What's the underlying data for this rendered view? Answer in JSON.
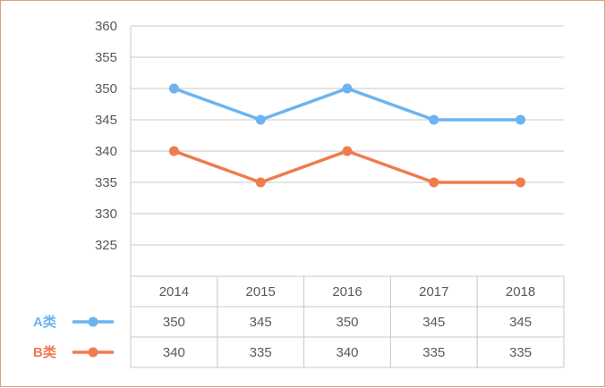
{
  "chart_data": {
    "type": "line",
    "categories": [
      "2014",
      "2015",
      "2016",
      "2017",
      "2018"
    ],
    "ylim": [
      320,
      360
    ],
    "yticks": [
      360,
      355,
      350,
      345,
      340,
      335,
      330,
      325
    ],
    "grid": true,
    "legend_placement": "left-of-table",
    "series": [
      {
        "name": "A类",
        "color": "#6cb4ef",
        "values": [
          350,
          345,
          350,
          345,
          345
        ]
      },
      {
        "name": "B类",
        "color": "#ef7c4f",
        "values": [
          340,
          335,
          340,
          335,
          335
        ]
      }
    ],
    "data_table": true
  }
}
